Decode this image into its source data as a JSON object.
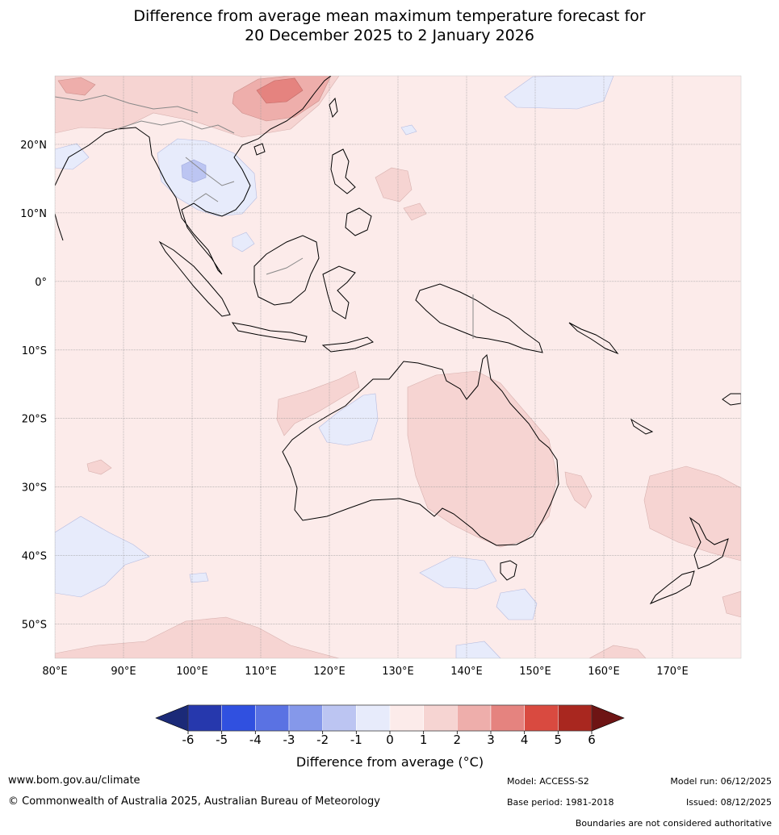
{
  "title": {
    "line1": "Difference from average mean maximum temperature forecast for",
    "line2": "20 December 2025 to 2 January 2026"
  },
  "map": {
    "lon_labels": [
      "80°E",
      "90°E",
      "100°E",
      "110°E",
      "120°E",
      "130°E",
      "140°E",
      "150°E",
      "160°E",
      "170°E"
    ],
    "lat_labels": [
      "20°N",
      "10°N",
      "0°",
      "10°S",
      "20°S",
      "30°S",
      "40°S",
      "50°S"
    ],
    "lon_range": [
      80,
      180
    ],
    "lat_range": [
      -55,
      30
    ]
  },
  "colorbar": {
    "label": "Difference from average (°C)",
    "ticks": [
      "-6",
      "-5",
      "-4",
      "-3",
      "-2",
      "-1",
      "0",
      "1",
      "2",
      "3",
      "4",
      "5",
      "6"
    ],
    "colors": {
      "below": "#1b2a78",
      "bins": [
        "#2638ad",
        "#3050e0",
        "#5a72e3",
        "#8598ea",
        "#bcc5f2",
        "#e7ebfb",
        "#fcebea",
        "#f6d4d2",
        "#eeaeab",
        "#e5837f",
        "#d94a40",
        "#a9271f"
      ],
      "above": "#6e1414"
    }
  },
  "footer": {
    "website": "www.bom.gov.au/climate",
    "copyright": "© Commonwealth of Australia 2025, Australian Bureau of Meteorology",
    "model": "Model: ACCESS-S2",
    "base_period": "Base period: 1981-2018",
    "model_run": "Model run: 06/12/2025",
    "issued": "Issued: 08/12/2025",
    "disclaimer": "Boundaries are not considered authoritative"
  }
}
